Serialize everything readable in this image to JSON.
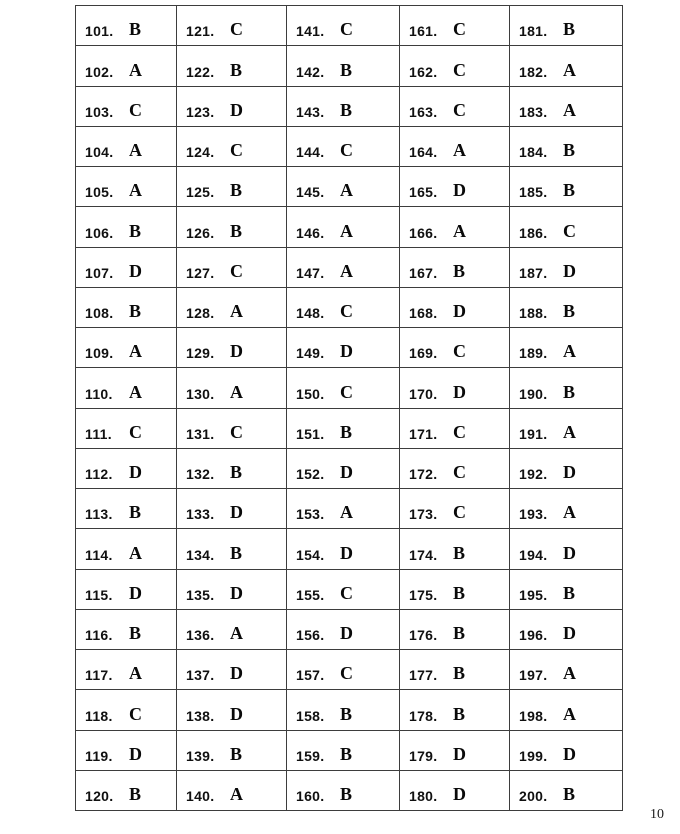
{
  "document": {
    "page_number": "10"
  },
  "answer_key": {
    "columns": [
      {
        "entries": [
          {
            "num": "101.",
            "ans": "B"
          },
          {
            "num": "102.",
            "ans": "A"
          },
          {
            "num": "103.",
            "ans": "C"
          },
          {
            "num": "104.",
            "ans": "A"
          },
          {
            "num": "105.",
            "ans": "A"
          },
          {
            "num": "106.",
            "ans": "B"
          },
          {
            "num": "107.",
            "ans": "D"
          },
          {
            "num": "108.",
            "ans": "B"
          },
          {
            "num": "109.",
            "ans": "A"
          },
          {
            "num": "110.",
            "ans": "A"
          },
          {
            "num": "111.",
            "ans": "C"
          },
          {
            "num": "112.",
            "ans": "D"
          },
          {
            "num": "113.",
            "ans": "B"
          },
          {
            "num": "114.",
            "ans": "A"
          },
          {
            "num": "115.",
            "ans": "D"
          },
          {
            "num": "116.",
            "ans": "B"
          },
          {
            "num": "117.",
            "ans": "A"
          },
          {
            "num": "118.",
            "ans": "C"
          },
          {
            "num": "119.",
            "ans": "D"
          },
          {
            "num": "120.",
            "ans": "B"
          }
        ]
      },
      {
        "entries": [
          {
            "num": "121.",
            "ans": "C"
          },
          {
            "num": "122.",
            "ans": "B"
          },
          {
            "num": "123.",
            "ans": "D"
          },
          {
            "num": "124.",
            "ans": "C"
          },
          {
            "num": "125.",
            "ans": "B"
          },
          {
            "num": "126.",
            "ans": "B"
          },
          {
            "num": "127.",
            "ans": "C"
          },
          {
            "num": "128.",
            "ans": "A"
          },
          {
            "num": "129.",
            "ans": "D"
          },
          {
            "num": "130.",
            "ans": "A"
          },
          {
            "num": "131.",
            "ans": "C"
          },
          {
            "num": "132.",
            "ans": "B"
          },
          {
            "num": "133.",
            "ans": "D"
          },
          {
            "num": "134.",
            "ans": "B"
          },
          {
            "num": "135.",
            "ans": "D"
          },
          {
            "num": "136.",
            "ans": "A"
          },
          {
            "num": "137.",
            "ans": "D"
          },
          {
            "num": "138.",
            "ans": "D"
          },
          {
            "num": "139.",
            "ans": "B"
          },
          {
            "num": "140.",
            "ans": "A"
          }
        ]
      },
      {
        "entries": [
          {
            "num": "141.",
            "ans": "C"
          },
          {
            "num": "142.",
            "ans": "B"
          },
          {
            "num": "143.",
            "ans": "B"
          },
          {
            "num": "144.",
            "ans": "C"
          },
          {
            "num": "145.",
            "ans": "A"
          },
          {
            "num": "146.",
            "ans": "A"
          },
          {
            "num": "147.",
            "ans": "A"
          },
          {
            "num": "148.",
            "ans": "C"
          },
          {
            "num": "149.",
            "ans": "D"
          },
          {
            "num": "150.",
            "ans": "C"
          },
          {
            "num": "151.",
            "ans": "B"
          },
          {
            "num": "152.",
            "ans": "D"
          },
          {
            "num": "153.",
            "ans": "A"
          },
          {
            "num": "154.",
            "ans": "D"
          },
          {
            "num": "155.",
            "ans": "C"
          },
          {
            "num": "156.",
            "ans": "D"
          },
          {
            "num": "157.",
            "ans": "C"
          },
          {
            "num": "158.",
            "ans": "B"
          },
          {
            "num": "159.",
            "ans": "B"
          },
          {
            "num": "160.",
            "ans": "B"
          }
        ]
      },
      {
        "entries": [
          {
            "num": "161.",
            "ans": "C"
          },
          {
            "num": "162.",
            "ans": "C"
          },
          {
            "num": "163.",
            "ans": "C"
          },
          {
            "num": "164.",
            "ans": "A"
          },
          {
            "num": "165.",
            "ans": "D"
          },
          {
            "num": "166.",
            "ans": "A"
          },
          {
            "num": "167.",
            "ans": "B"
          },
          {
            "num": "168.",
            "ans": "D"
          },
          {
            "num": "169.",
            "ans": "C"
          },
          {
            "num": "170.",
            "ans": "D"
          },
          {
            "num": "171.",
            "ans": "C"
          },
          {
            "num": "172.",
            "ans": "C"
          },
          {
            "num": "173.",
            "ans": "C"
          },
          {
            "num": "174.",
            "ans": "B"
          },
          {
            "num": "175.",
            "ans": "B"
          },
          {
            "num": "176.",
            "ans": "B"
          },
          {
            "num": "177.",
            "ans": "B"
          },
          {
            "num": "178.",
            "ans": "B"
          },
          {
            "num": "179.",
            "ans": "D"
          },
          {
            "num": "180.",
            "ans": "D"
          }
        ]
      },
      {
        "entries": [
          {
            "num": "181.",
            "ans": "B"
          },
          {
            "num": "182.",
            "ans": "A"
          },
          {
            "num": "183.",
            "ans": "A"
          },
          {
            "num": "184.",
            "ans": "B"
          },
          {
            "num": "185.",
            "ans": "B"
          },
          {
            "num": "186.",
            "ans": "C"
          },
          {
            "num": "187.",
            "ans": "D"
          },
          {
            "num": "188.",
            "ans": "B"
          },
          {
            "num": "189.",
            "ans": "A"
          },
          {
            "num": "190.",
            "ans": "B"
          },
          {
            "num": "191.",
            "ans": "A"
          },
          {
            "num": "192.",
            "ans": "D"
          },
          {
            "num": "193.",
            "ans": "A"
          },
          {
            "num": "194.",
            "ans": "D"
          },
          {
            "num": "195.",
            "ans": "B"
          },
          {
            "num": "196.",
            "ans": "D"
          },
          {
            "num": "197.",
            "ans": "A"
          },
          {
            "num": "198.",
            "ans": "A"
          },
          {
            "num": "199.",
            "ans": "D"
          },
          {
            "num": "200.",
            "ans": "B"
          }
        ]
      }
    ]
  }
}
